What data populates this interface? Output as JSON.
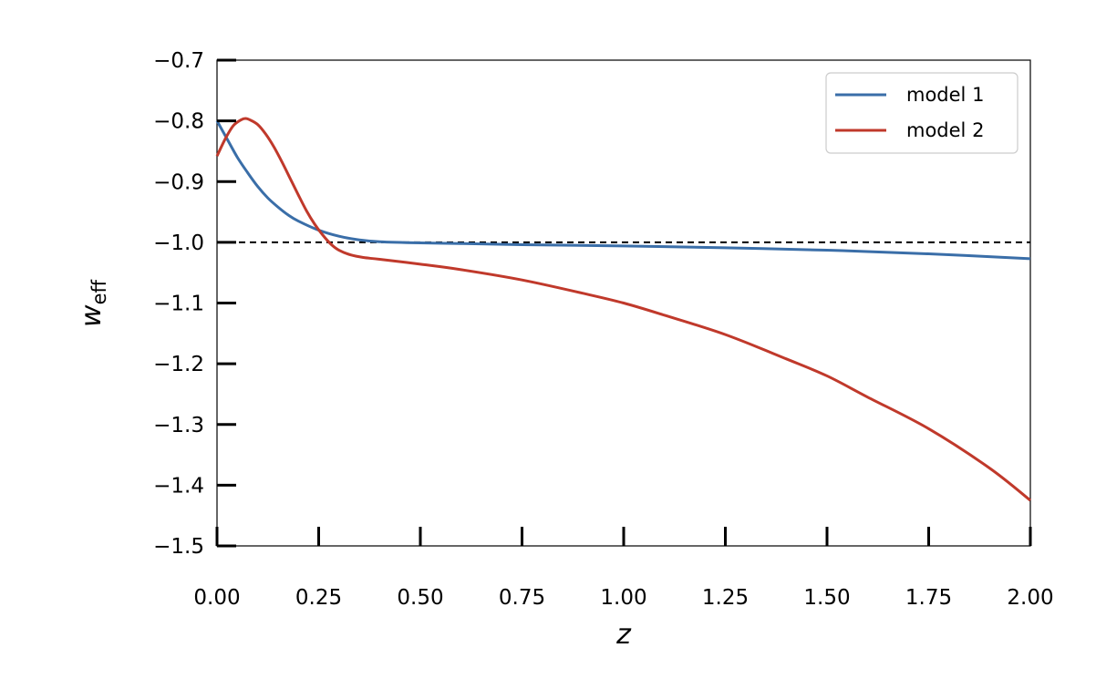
{
  "chart_data": {
    "type": "line",
    "title": "",
    "xlabel": "z",
    "ylabel_main": "w",
    "ylabel_sub": "eff",
    "xlim": [
      0,
      2
    ],
    "ylim": [
      -1.5,
      -0.7
    ],
    "xticks": [
      0,
      0.25,
      0.5,
      0.75,
      1.0,
      1.25,
      1.5,
      1.75,
      2.0
    ],
    "xtick_labels": [
      "0.00",
      "0.25",
      "0.50",
      "0.75",
      "1.00",
      "1.25",
      "1.50",
      "1.75",
      "2.00"
    ],
    "yticks": [
      -0.7,
      -0.8,
      -0.9,
      -1.0,
      -1.1,
      -1.2,
      -1.3,
      -1.4,
      -1.5
    ],
    "ytick_labels": [
      "−0.7",
      "−0.8",
      "−0.9",
      "−1.0",
      "−1.1",
      "−1.2",
      "−1.3",
      "−1.4",
      "−1.5"
    ],
    "grid": false,
    "legend_position": "top-right",
    "reference_line": {
      "y": -1.0,
      "style": "dashed",
      "color": "#000000"
    },
    "series": [
      {
        "name": "model 1",
        "color": "#3a6ea8",
        "x": [
          0,
          0.025,
          0.05,
          0.075,
          0.1,
          0.125,
          0.15,
          0.175,
          0.2,
          0.25,
          0.3,
          0.35,
          0.4,
          0.5,
          0.6,
          0.75,
          1.0,
          1.25,
          1.5,
          1.75,
          2.0
        ],
        "y": [
          -0.8,
          -0.83,
          -0.86,
          -0.885,
          -0.908,
          -0.927,
          -0.942,
          -0.955,
          -0.965,
          -0.98,
          -0.99,
          -0.996,
          -0.999,
          -1.001,
          -1.002,
          -1.004,
          -1.006,
          -1.009,
          -1.013,
          -1.019,
          -1.027
        ]
      },
      {
        "name": "model 2",
        "color": "#c0392b",
        "x": [
          0,
          0.02,
          0.04,
          0.06,
          0.07,
          0.08,
          0.1,
          0.12,
          0.14,
          0.16,
          0.18,
          0.2,
          0.22,
          0.24,
          0.26,
          0.28,
          0.3,
          0.33,
          0.36,
          0.4,
          0.5,
          0.6,
          0.75,
          0.9,
          1.0,
          1.1,
          1.25,
          1.4,
          1.5,
          1.6,
          1.75,
          1.9,
          2.0
        ],
        "y": [
          -0.858,
          -0.83,
          -0.808,
          -0.798,
          -0.796,
          -0.798,
          -0.806,
          -0.822,
          -0.843,
          -0.868,
          -0.895,
          -0.922,
          -0.948,
          -0.97,
          -0.988,
          -1.003,
          -1.013,
          -1.021,
          -1.025,
          -1.028,
          -1.036,
          -1.045,
          -1.062,
          -1.084,
          -1.1,
          -1.12,
          -1.152,
          -1.192,
          -1.22,
          -1.255,
          -1.307,
          -1.372,
          -1.425
        ]
      }
    ]
  }
}
